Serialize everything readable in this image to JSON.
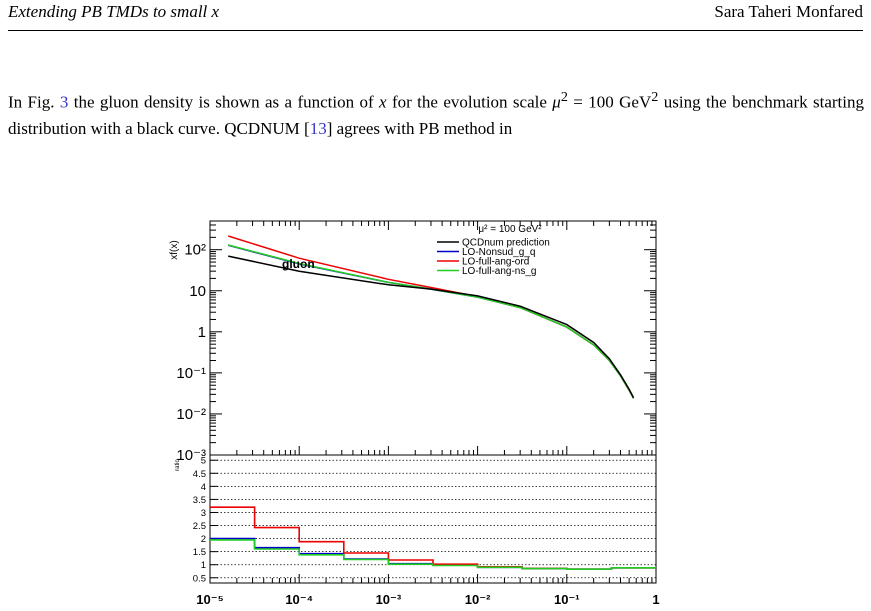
{
  "header": {
    "title": "Extending PB TMDs to small x",
    "author": "Sara Taheri Monfared"
  },
  "paragraph": {
    "p1": "In Fig. ",
    "fig_ref": "3",
    "p2": " the gluon density is shown as a function of ",
    "x": "x",
    "p3": " for the evolution scale ",
    "mu": "μ",
    "p4": " = 100 GeV",
    "p5": " using the benchmark starting distribution with a black curve. QCDNUM [",
    "cite": "13",
    "p6": "] agrees with PB method in"
  },
  "chart_data": [
    {
      "type": "line",
      "ylabel": "xf(x)",
      "annotation": "gluon",
      "legend_header": "μ² = 100 GeV²",
      "legend_position": "top-right",
      "xscale": "log",
      "yscale": "log",
      "xlim": [
        1e-05,
        1
      ],
      "ylim": [
        0.001,
        500
      ],
      "ytick_labels": [
        "10²",
        "10",
        "1",
        "10⁻¹",
        "10⁻²",
        "10⁻³"
      ],
      "ytick_values": [
        100,
        10,
        1,
        0.1,
        0.01,
        0.001
      ],
      "series": [
        {
          "name": "QCDnum prediction",
          "color": "#000000",
          "x": [
            1.6e-05,
            0.0001,
            0.001,
            0.003,
            0.01,
            0.03,
            0.1,
            0.2,
            0.3,
            0.4,
            0.5,
            0.56
          ],
          "y": [
            70,
            30,
            14,
            11,
            7.5,
            4.2,
            1.5,
            0.55,
            0.22,
            0.09,
            0.04,
            0.025
          ]
        },
        {
          "name": "LO-Nonsud_g_q",
          "color": "#0000cc",
          "x": [
            1.6e-05,
            0.0001,
            0.001,
            0.003,
            0.01,
            0.03,
            0.1,
            0.2,
            0.3,
            0.4,
            0.5,
            0.56
          ],
          "y": [
            128,
            45,
            16,
            11,
            7.0,
            3.9,
            1.3,
            0.48,
            0.2,
            0.085,
            0.038,
            0.024
          ]
        },
        {
          "name": "LO-full-ang-ord",
          "color": "#ee0000",
          "x": [
            1.6e-05,
            0.0001,
            0.001,
            0.003,
            0.01,
            0.03,
            0.1,
            0.2,
            0.3,
            0.4,
            0.5,
            0.56
          ],
          "y": [
            215,
            62,
            19,
            12,
            7.2,
            3.9,
            1.3,
            0.48,
            0.2,
            0.085,
            0.038,
            0.024
          ]
        },
        {
          "name": "LO-full-ang-ns_g",
          "color": "#22cc22",
          "x": [
            1.6e-05,
            0.0001,
            0.001,
            0.003,
            0.01,
            0.03,
            0.1,
            0.2,
            0.3,
            0.4,
            0.5,
            0.56
          ],
          "y": [
            130,
            46,
            16,
            11,
            7.0,
            3.9,
            1.3,
            0.48,
            0.2,
            0.085,
            0.038,
            0.024
          ]
        }
      ]
    },
    {
      "type": "line",
      "ylabel": "ratio",
      "xscale": "log",
      "xlim": [
        1e-05,
        1
      ],
      "ylim": [
        0.3,
        5.2
      ],
      "ytick_labels": [
        "5",
        "4.5",
        "4",
        "3.5",
        "3",
        "2.5",
        "2",
        "1.5",
        "1",
        "0.5"
      ],
      "ytick_values": [
        5,
        4.5,
        4,
        3.5,
        3,
        2.5,
        2,
        1.5,
        1,
        0.5
      ],
      "xtick_labels": [
        "10⁻⁵",
        "10⁻⁴",
        "10⁻³",
        "10⁻²",
        "10⁻¹",
        "1"
      ],
      "xtick_values": [
        1e-05,
        0.0001,
        0.001,
        0.01,
        0.1,
        1
      ],
      "grid": true,
      "bin_edges": [
        1e-05,
        3.16e-05,
        0.0001,
        0.000316,
        0.001,
        0.00316,
        0.01,
        0.0316,
        0.1,
        0.316,
        1
      ],
      "series": [
        {
          "color": "#0000cc",
          "values": [
            2.0,
            1.65,
            1.42,
            1.22,
            1.04,
            0.98,
            0.9,
            0.85,
            0.83,
            0.88
          ]
        },
        {
          "color": "#ee0000",
          "values": [
            3.2,
            2.42,
            1.88,
            1.45,
            1.18,
            1.02,
            0.92,
            0.86,
            0.83,
            0.88
          ]
        },
        {
          "color": "#22cc22",
          "values": [
            1.95,
            1.6,
            1.38,
            1.2,
            1.02,
            0.97,
            0.9,
            0.85,
            0.83,
            0.88
          ]
        }
      ]
    }
  ]
}
